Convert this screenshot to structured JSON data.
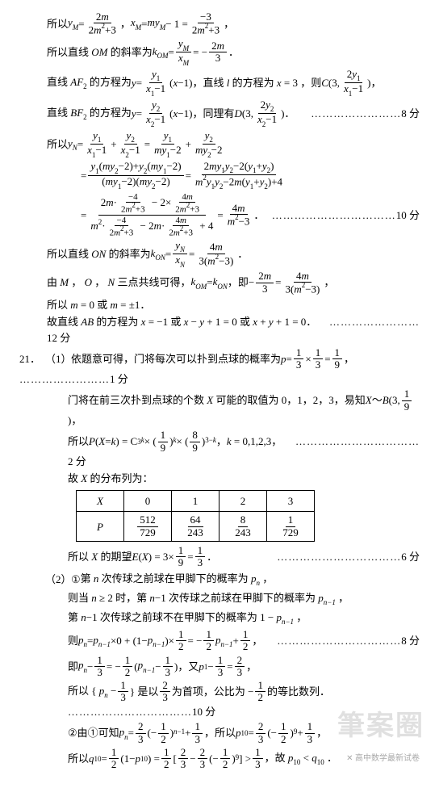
{
  "watermark": "筆案圈",
  "q21_label": "21．",
  "part1_label": "（1）",
  "part2_label": "（2）",
  "sub1_label": "①",
  "sub2_label": "②",
  "dots6": "…………",
  "dots10": "……………………",
  "dots12": "……………………………",
  "s8": "8 分",
  "s10": "10 分",
  "s12": "12 分",
  "s1": "1 分",
  "s2": "2 分",
  "s6": "6 分",
  "L": {
    "a1_pre": "所以 ",
    "a1_mid": "，",
    "a1_eq": " = ",
    "a2": "所以直线 <span class=f>OM</span> 的斜率为 ",
    "a3a": "直线 <span class=f>AF</span><span class=sub>2</span> 的方程为 ",
    "a3b": "，直线 <span class=f>l</span> 的方程为 <span class=f>x</span> = 3 ，则 ",
    "a4": "直线 <span class=f>BF</span><span class=sub>2</span> 的方程为 ",
    "a4b": "，同理有 ",
    "a5": "所以 ",
    "a8": "所以直线 <span class=f>ON</span> 的斜率为 ",
    "a9": "由 <span class=f>M</span> ， <span class=f>O</span> ， <span class=f>N</span> 三点共线可得，",
    "a9b": "，即 ",
    "a10": "所以 <span class=f>m</span> = 0 或 <span class=f>m</span> = ±1．",
    "a11": "故直线 <span class=f>AB</span> 的方程为 <span class=f>x</span> = −1 或 <span class=f>x</span> − <span class=f>y</span> + 1 = 0 或 <span class=f>x</span> + <span class=f>y</span> + 1 = 0．",
    "b1": "依题意可得，门将每次可以扑到点球的概率为 ",
    "b2": "门将在前三次扑到点球的个数 <span class=f>X</span> 可能的取值为 0，1，2，3，易知 ",
    "b3": "所以 ",
    "b3b": "，<span class=f>k</span> = 0,1,2,3，",
    "b4": "故 <span class=f>X</span> 的分布列为：",
    "b5": "所以 <span class=f>X</span> 的期望 ",
    "c1": "第 <span class=f>n</span> 次传球之前球在甲脚下的概率为 <span class=f>p<span class=sub>n</span></span> ，",
    "c2": "则当 <span class=f>n</span> ≥ 2 时，第 <span class=f>n</span>−1 次传球之前球在甲脚下的概率为 <span class=f>p<span class=sub>n−1</span></span> ，",
    "c3": "第 <span class=f>n</span>−1 次传球之前球不在甲脚下的概率为 1 − <span class=f>p<span class=sub>n−1</span></span> ，",
    "c4": "则 ",
    "c5": "即 ",
    "c5b": "，又 ",
    "c6a": "所以 { <span class=f>p<span class=sub>n</span></span> − ",
    "c6b": " } 是以 ",
    "c6c": " 为首项，公比为 − ",
    "c6d": " 的等比数列．",
    "c7": "由①可知 ",
    "c7b": "，所以 ",
    "c8": "所以 ",
    "c8b": "，故 <span class=f>p</span><span class=sub>10</span> &lt; <span class=f>q</span><span class=sub>10</span> ．"
  },
  "frac": {
    "yM": {
      "n": "2<span class=f>m</span>",
      "d": "2<span class=f>m</span><span class=sup>2</span>+3"
    },
    "xM": {
      "n": "−3",
      "d": "2<span class=f>m</span><span class=sup>2</span>+3"
    },
    "kOM": {
      "n": "<span class=f>y<span class=sub>M</span></span>",
      "d": "<span class=f>x<span class=sub>M</span></span>"
    },
    "neg2m3": {
      "n": "2<span class=f>m</span>",
      "d": "3"
    },
    "af2": {
      "n": "<span class=f>y</span><span class=sub>1</span>",
      "d": "<span class=f>x</span><span class=sub>1</span>−1"
    },
    "C2": {
      "n": "2<span class=f>y</span><span class=sub>1</span>",
      "d": "<span class=f>x</span><span class=sub>1</span>−1"
    },
    "bf2": {
      "n": "<span class=f>y</span><span class=sub>2</span>",
      "d": "<span class=f>x</span><span class=sub>2</span>−1"
    },
    "D2": {
      "n": "2<span class=f>y</span><span class=sub>2</span>",
      "d": "<span class=f>x</span><span class=sub>2</span>−1"
    },
    "yN1": {
      "n": "<span class=f>y</span><span class=sub>1</span>",
      "d": "<span class=f>x</span><span class=sub>1</span>−1"
    },
    "yN2": {
      "n": "<span class=f>y</span><span class=sub>2</span>",
      "d": "<span class=f>x</span><span class=sub>2</span>−1"
    },
    "yN3": {
      "n": "<span class=f>y</span><span class=sub>1</span>",
      "d": "<span class=f>my</span><span class=sub>1</span>−2"
    },
    "yN4": {
      "n": "<span class=f>y</span><span class=sub>2</span>",
      "d": "<span class=f>my</span><span class=sub>2</span>−2"
    },
    "yN5": {
      "n": "<span class=f>y</span><span class=sub>1</span>(<span class=f>my</span><span class=sub>2</span>−2)+<span class=f>y</span><span class=sub>2</span>(<span class=f>my</span><span class=sub>1</span>−2)",
      "d": "(<span class=f>my</span><span class=sub>1</span>−2)(<span class=f>my</span><span class=sub>2</span>−2)"
    },
    "yN6": {
      "n": "2<span class=f>my</span><span class=sub>1</span><span class=f>y</span><span class=sub>2</span>−2(<span class=f>y</span><span class=sub>1</span>+<span class=f>y</span><span class=sub>2</span>)",
      "d": "<span class=f>m</span><span class=sup>2</span><span class=f>y</span><span class=sub>1</span><span class=f>y</span><span class=sub>2</span>−2<span class=f>m</span>(<span class=f>y</span><span class=sub>1</span>+<span class=f>y</span><span class=sub>2</span>)+4"
    },
    "inA": {
      "n": "−4",
      "d": "2<span class=f>m</span><span class=sup>2</span>+3"
    },
    "inB": {
      "n": "4<span class=f>m</span>",
      "d": "2<span class=f>m</span><span class=sup>2</span>+3"
    },
    "r4m": {
      "n": "4<span class=f>m</span>",
      "d": "<span class=f>m</span><span class=sup>2</span>−3"
    },
    "kON": {
      "n": "<span class=f>y<span class=sub>N</span></span>",
      "d": "<span class=f>x<span class=sub>N</span></span>"
    },
    "kON2": {
      "n": "4<span class=f>m</span>",
      "d": "3(<span class=f>m</span><span class=sup>2</span>−3)"
    },
    "p13": {
      "n": "1",
      "d": "3"
    },
    "p19": {
      "n": "1",
      "d": "9"
    },
    "p89": {
      "n": "8",
      "d": "9"
    },
    "ex": {
      "n": "1",
      "d": "3"
    },
    "h12": {
      "n": "1",
      "d": "2"
    },
    "h23": {
      "n": "2",
      "d": "3"
    }
  },
  "table": {
    "h": [
      "<span class=f>X</span>",
      "0",
      "1",
      "2",
      "3"
    ],
    "p": [
      "<span class=f>P</span>",
      "512/729",
      "64/243",
      "8/243",
      "1/729"
    ]
  },
  "tf": [
    {
      "n": "512",
      "d": "729"
    },
    {
      "n": "64",
      "d": "243"
    },
    {
      "n": "8",
      "d": "243"
    },
    {
      "n": "1",
      "d": "729"
    }
  ]
}
